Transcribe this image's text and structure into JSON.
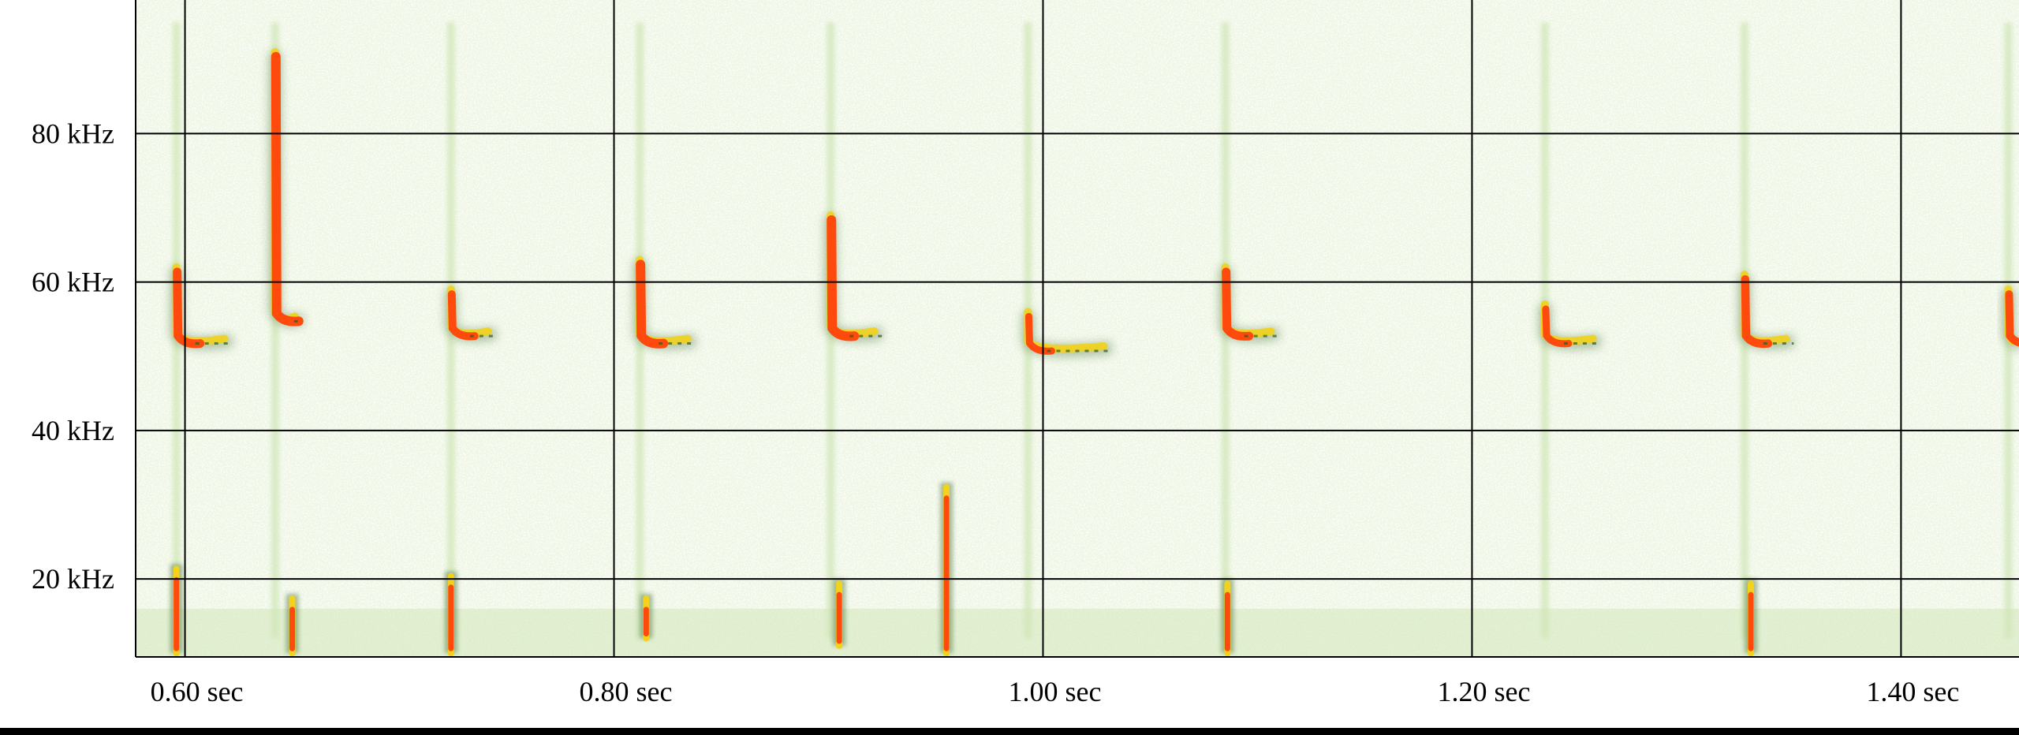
{
  "chart_data": {
    "type": "heatmap",
    "subtype": "spectrogram",
    "title": "",
    "xlabel": "",
    "ylabel": "",
    "x_unit": "sec",
    "y_unit": "kHz",
    "xlim": [
      0.577,
      1.455
    ],
    "ylim": [
      9.5,
      98
    ],
    "x_ticks": [
      0.6,
      0.8,
      1.0,
      1.2,
      1.4
    ],
    "x_tick_labels": [
      "0.60 sec",
      "0.80 sec",
      "1.00 sec",
      "1.20 sec",
      "1.40 sec"
    ],
    "y_ticks": [
      20,
      40,
      60,
      80
    ],
    "y_tick_labels": [
      "20 kHz",
      "40 kHz",
      "60 kHz",
      "80 kHz"
    ],
    "grid": true,
    "colors": {
      "background": "#eef6e4",
      "background_light": "#f7fbf1",
      "low": "#cfe5b5",
      "mid": "#2e5a1e",
      "high_yellow": "#f2d21a",
      "peak": "#ff4a0e",
      "grid": "#000000"
    },
    "calls": [
      {
        "t": 0.596,
        "f_start": 62,
        "f_end": 53,
        "tail_end": 0.622,
        "intensity": 0.9
      },
      {
        "t": 0.642,
        "f_start": 91,
        "f_end": 56,
        "tail_end": 0.655,
        "intensity": 1.0
      },
      {
        "t": 0.724,
        "f_start": 59,
        "f_end": 54,
        "tail_end": 0.745,
        "intensity": 0.8
      },
      {
        "t": 0.812,
        "f_start": 63,
        "f_end": 53,
        "tail_end": 0.838,
        "intensity": 1.0
      },
      {
        "t": 0.901,
        "f_start": 69,
        "f_end": 54,
        "tail_end": 0.925,
        "intensity": 1.0
      },
      {
        "t": 0.993,
        "f_start": 56,
        "f_end": 52,
        "tail_end": 1.032,
        "intensity": 0.7
      },
      {
        "t": 1.085,
        "f_start": 62,
        "f_end": 54,
        "tail_end": 1.11,
        "intensity": 0.9
      },
      {
        "t": 1.234,
        "f_start": 57,
        "f_end": 53,
        "tail_end": 1.26,
        "intensity": 0.7
      },
      {
        "t": 1.327,
        "f_start": 61,
        "f_end": 53,
        "tail_end": 1.35,
        "intensity": 0.85
      },
      {
        "t": 1.45,
        "f_start": 59,
        "f_end": 53,
        "tail_end": 1.455,
        "intensity": 0.8
      }
    ],
    "low_band_events": [
      {
        "t": 0.596,
        "f_low": 10,
        "f_high": 22
      },
      {
        "t": 0.65,
        "f_low": 10,
        "f_high": 18
      },
      {
        "t": 0.724,
        "f_low": 10,
        "f_high": 21
      },
      {
        "t": 0.815,
        "f_low": 12,
        "f_high": 18
      },
      {
        "t": 0.905,
        "f_low": 11,
        "f_high": 20
      },
      {
        "t": 0.955,
        "f_low": 10,
        "f_high": 33
      },
      {
        "t": 1.086,
        "f_low": 10,
        "f_high": 20
      },
      {
        "t": 1.33,
        "f_low": 10,
        "f_high": 20
      }
    ]
  }
}
